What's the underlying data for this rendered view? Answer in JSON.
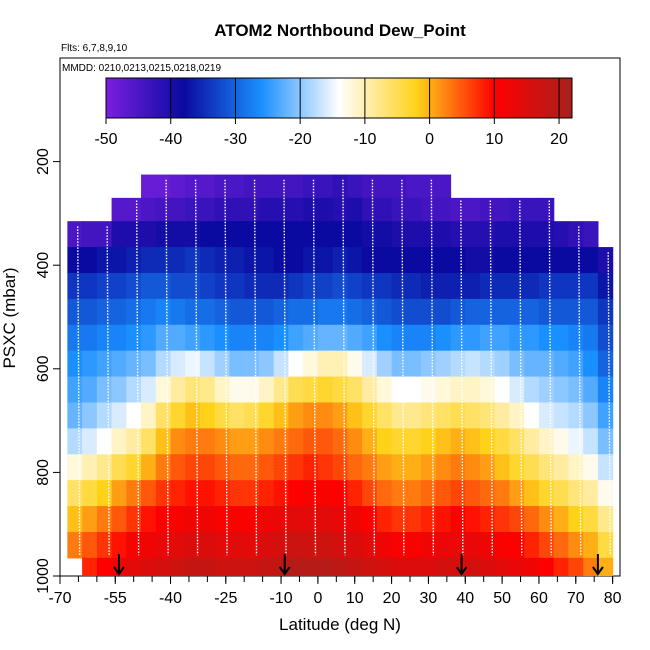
{
  "chart_data": {
    "type": "heatmap",
    "title": "ATOM2 Northbound Dew_Point",
    "flights_label": "Flts: 6,7,8,9,10",
    "mmdd_label": "MMDD: 0210,0213,0215,0218,0219",
    "xlabel": "Latitude (deg N)",
    "ylabel": "PSXC (mbar)",
    "xlim": [
      -70,
      82
    ],
    "ylim": [
      1000,
      0
    ],
    "x_ticks": [
      -70,
      -55,
      -40,
      -25,
      -10,
      0,
      10,
      20,
      30,
      40,
      50,
      60,
      70,
      80
    ],
    "y_ticks": [
      200,
      400,
      600,
      800,
      1000
    ],
    "colorbar": {
      "range": [
        -50,
        22
      ],
      "ticks": [
        -50,
        -40,
        -30,
        -20,
        -10,
        0,
        10,
        20
      ],
      "colors": [
        "#7a1fe0",
        "#0a0aa0",
        "#1a8fff",
        "#ffffff",
        "#ffd21a",
        "#ff0000",
        "#a8201c"
      ]
    },
    "profile_marker_latitudes": [
      -54,
      -9,
      39,
      76
    ],
    "levels_mbar": [
      250,
      290,
      340,
      390,
      440,
      490,
      540,
      590,
      640,
      690,
      740,
      790,
      840,
      890,
      940,
      990
    ],
    "lat_bins": [
      -66,
      -62,
      -58,
      -54,
      -50,
      -46,
      -42,
      -38,
      -34,
      -30,
      -26,
      -22,
      -18,
      -14,
      -10,
      -6,
      -2,
      2,
      6,
      10,
      14,
      18,
      22,
      26,
      30,
      34,
      38,
      42,
      46,
      50,
      54,
      58,
      62,
      66,
      70,
      74,
      78
    ],
    "dew_point_grid": [
      [
        null,
        null,
        null,
        null,
        null,
        -48,
        -48,
        -47,
        -46,
        -46,
        -45,
        -45,
        -44,
        -44,
        -44,
        -44,
        -43,
        -43,
        -42,
        -43,
        -44,
        -44,
        -44,
        -45,
        -45,
        -45,
        null,
        null,
        null,
        null,
        null,
        null,
        null,
        null,
        null,
        null,
        null
      ],
      [
        null,
        null,
        null,
        -46,
        -46,
        -45,
        -44,
        -44,
        -43,
        -43,
        -42,
        -42,
        -42,
        -41,
        -41,
        -41,
        -40,
        -40,
        -41,
        -40,
        -42,
        -42,
        -43,
        -43,
        -44,
        -44,
        -45,
        -45,
        -44,
        -44,
        -43,
        -43,
        -43,
        null,
        null,
        null,
        null
      ],
      [
        -45,
        -44,
        -44,
        -40,
        -40,
        -40,
        -39,
        -39,
        -39,
        -38,
        -38,
        -38,
        -38,
        -38,
        -38,
        -38,
        -38,
        -38,
        -38,
        -38,
        -39,
        -39,
        -40,
        -40,
        -40,
        -40,
        -41,
        -41,
        -41,
        -40,
        -40,
        -40,
        -40,
        -41,
        -42,
        -43,
        null
      ],
      [
        -38,
        -38,
        -37,
        -37,
        -36,
        -35,
        -35,
        -35,
        -34,
        -35,
        -36,
        -36,
        -37,
        -37,
        -38,
        -38,
        -37,
        -37,
        -36,
        -37,
        -38,
        -38,
        -38,
        -38,
        -38,
        -38,
        -38,
        -39,
        -39,
        -38,
        -38,
        -38,
        -38,
        -38,
        -38,
        -38,
        -40
      ],
      [
        -34,
        -34,
        -33,
        -33,
        -32,
        -31,
        -31,
        -32,
        -32,
        -33,
        -34,
        -34,
        -35,
        -35,
        -35,
        -34,
        -33,
        -33,
        -32,
        -33,
        -34,
        -34,
        -35,
        -35,
        -36,
        -36,
        -36,
        -36,
        -35,
        -35,
        -35,
        -35,
        -34,
        -34,
        -34,
        -34,
        -37
      ],
      [
        -31,
        -31,
        -30,
        -30,
        -29,
        -28,
        -27,
        -28,
        -29,
        -29,
        -30,
        -31,
        -31,
        -31,
        -30,
        -29,
        -29,
        -28,
        -28,
        -29,
        -30,
        -31,
        -32,
        -32,
        -32,
        -32,
        -31,
        -30,
        -30,
        -30,
        -30,
        -30,
        -31,
        -31,
        -31,
        -31,
        -34
      ],
      [
        -28,
        -28,
        -27,
        -27,
        -26,
        -25,
        -23,
        -23,
        -24,
        -25,
        -26,
        -27,
        -27,
        -27,
        -26,
        -24,
        -23,
        -22,
        -22,
        -23,
        -24,
        -26,
        -27,
        -27,
        -27,
        -26,
        -25,
        -25,
        -24,
        -24,
        -25,
        -25,
        -26,
        -26,
        -27,
        -28,
        -32
      ],
      [
        -26,
        -25,
        -24,
        -23,
        -22,
        -21,
        -18,
        -16,
        -15,
        -17,
        -19,
        -21,
        -21,
        -20,
        -17,
        -14,
        -12,
        -10,
        -10,
        -13,
        -16,
        -19,
        -21,
        -21,
        -20,
        -19,
        -18,
        -17,
        -18,
        -19,
        -21,
        -22,
        -22,
        -23,
        -24,
        -26,
        -30
      ],
      [
        -24,
        -23,
        -21,
        -20,
        -18,
        -16,
        -12,
        -9,
        -7,
        -8,
        -11,
        -13,
        -13,
        -11,
        -8,
        -5,
        -4,
        -3,
        -4,
        -6,
        -9,
        -12,
        -14,
        -14,
        -13,
        -12,
        -11,
        -11,
        -12,
        -14,
        -16,
        -18,
        -19,
        -20,
        -21,
        -23,
        -27
      ],
      [
        -22,
        -20,
        -18,
        -16,
        -14,
        -11,
        -6,
        -3,
        -1,
        -2,
        -4,
        -6,
        -5,
        -3,
        -1,
        1,
        2,
        2,
        1,
        -1,
        -3,
        -6,
        -8,
        -8,
        -7,
        -6,
        -5,
        -6,
        -7,
        -9,
        -11,
        -14,
        -16,
        -17,
        -18,
        -20,
        -24
      ],
      [
        -18,
        -16,
        -14,
        -11,
        -9,
        -6,
        -1,
        2,
        3,
        3,
        2,
        1,
        1,
        2,
        3,
        4,
        5,
        5,
        4,
        2,
        0,
        -2,
        -3,
        -3,
        -2,
        -1,
        0,
        -1,
        -2,
        -4,
        -6,
        -9,
        -11,
        -13,
        -15,
        -17,
        -21
      ],
      [
        -12,
        -10,
        -8,
        -5,
        -3,
        0,
        3,
        5,
        6,
        6,
        5,
        4,
        4,
        5,
        6,
        7,
        8,
        7,
        6,
        4,
        3,
        1,
        0,
        0,
        1,
        2,
        3,
        2,
        1,
        -1,
        -3,
        -5,
        -7,
        -9,
        -11,
        -13,
        -17
      ],
      [
        -6,
        -4,
        -2,
        1,
        3,
        5,
        7,
        8,
        9,
        9,
        8,
        7,
        7,
        8,
        9,
        10,
        11,
        11,
        10,
        8,
        6,
        4,
        3,
        3,
        4,
        5,
        6,
        5,
        4,
        3,
        1,
        -1,
        -3,
        -5,
        -7,
        -9,
        -13
      ],
      [
        -1,
        1,
        3,
        5,
        7,
        9,
        10,
        11,
        12,
        12,
        11,
        11,
        11,
        12,
        13,
        14,
        14,
        14,
        13,
        12,
        10,
        8,
        7,
        7,
        8,
        9,
        10,
        9,
        8,
        7,
        6,
        4,
        2,
        0,
        -2,
        -4,
        -8
      ],
      [
        3,
        5,
        7,
        9,
        11,
        12,
        13,
        14,
        15,
        15,
        14,
        14,
        14,
        15,
        16,
        17,
        17,
        17,
        16,
        15,
        14,
        12,
        11,
        11,
        12,
        13,
        13,
        13,
        12,
        11,
        10,
        8,
        6,
        4,
        2,
        0,
        -4
      ],
      [
        null,
        8,
        10,
        12,
        14,
        15,
        16,
        17,
        18,
        18,
        17,
        17,
        17,
        18,
        19,
        20,
        20,
        20,
        19,
        18,
        17,
        16,
        15,
        15,
        15,
        16,
        16,
        16,
        15,
        14,
        13,
        12,
        10,
        8,
        6,
        3,
        0
      ]
    ]
  }
}
